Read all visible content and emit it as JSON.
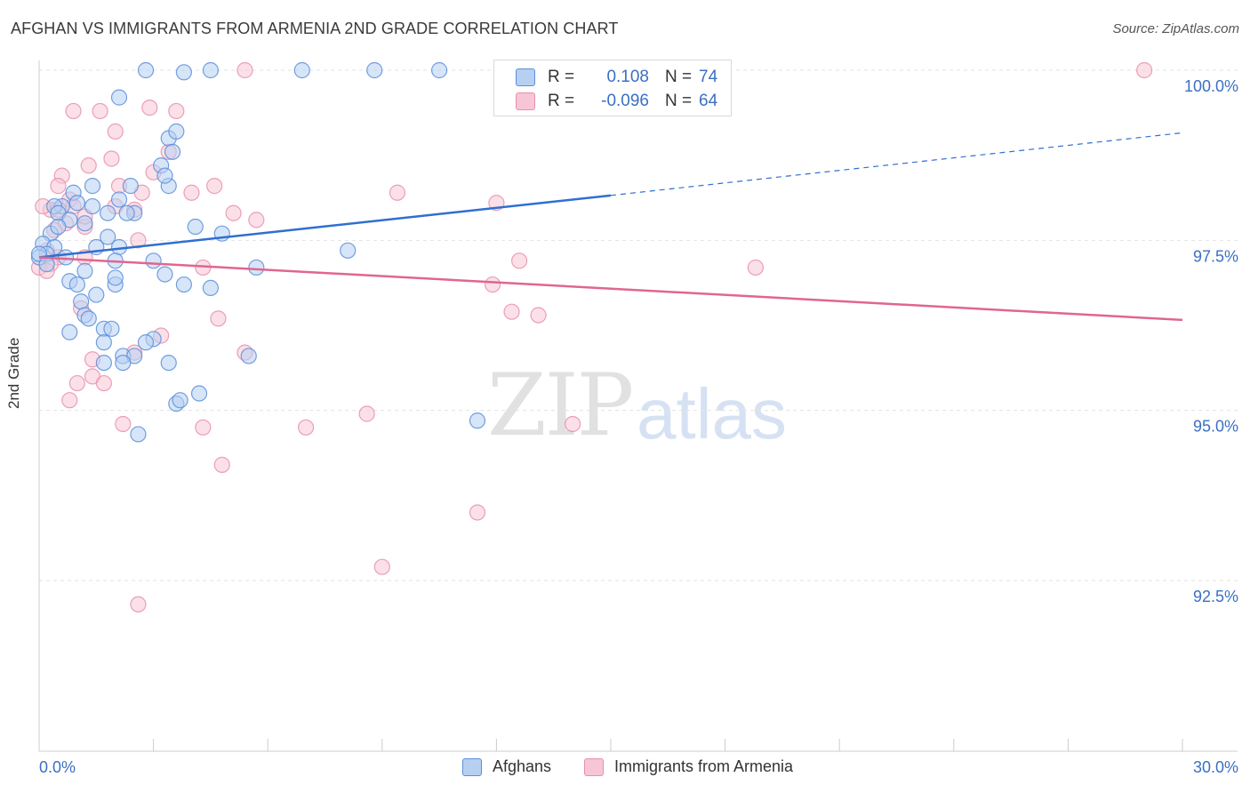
{
  "title": "AFGHAN VS IMMIGRANTS FROM ARMENIA 2ND GRADE CORRELATION CHART",
  "source": "Source: ZipAtlas.com",
  "watermark": {
    "zip": "ZIP",
    "atlas": "atlas"
  },
  "colors": {
    "blue": "#5b8fd9",
    "blue_fill": "#b7d0f2",
    "blue_line": "#2f6fd1",
    "pink": "#e78fae",
    "pink_fill": "#f7c6d6",
    "pink_line": "#e0668f",
    "axis_label": "#3a6fc4"
  },
  "legend": {
    "rows": [
      {
        "r_label": "R =",
        "r_value": "0.108",
        "n_label": "N =",
        "n_value": "74"
      },
      {
        "r_label": "R =",
        "r_value": "-0.096",
        "n_label": "N =",
        "n_value": "64"
      }
    ]
  },
  "bottom_legend": {
    "afghans": "Afghans",
    "armenia": "Immigrants from Armenia"
  },
  "chart_data": {
    "type": "scatter",
    "title": "AFGHAN VS IMMIGRANTS FROM ARMENIA 2ND GRADE CORRELATION CHART",
    "xlabel": "",
    "ylabel": "2nd Grade",
    "xlim": [
      0.0,
      30.0
    ],
    "ylim": [
      90.0,
      100.2
    ],
    "x_tick_labels": [
      "0.0%",
      "30.0%"
    ],
    "y_ticks": [
      92.5,
      95.0,
      97.5,
      100.0
    ],
    "y_tick_labels": [
      "92.5%",
      "95.0%",
      "97.5%",
      "100.0%"
    ],
    "grid": true,
    "series": [
      {
        "name": "Afghans",
        "r": 0.108,
        "n": 74,
        "trend": {
          "x": [
            0.0,
            15.0
          ],
          "y": [
            97.25,
            98.16
          ],
          "dashed_extension": {
            "x": [
              15.0,
              30.0
            ],
            "y": [
              98.16,
              99.08
            ]
          }
        },
        "points": [
          [
            2.8,
            100.0
          ],
          [
            3.8,
            99.97
          ],
          [
            4.5,
            100.0
          ],
          [
            6.9,
            100.0
          ],
          [
            8.8,
            100.0
          ],
          [
            10.5,
            100.0
          ],
          [
            2.1,
            99.6
          ],
          [
            3.4,
            99.0
          ],
          [
            3.5,
            98.8
          ],
          [
            3.6,
            99.1
          ],
          [
            3.2,
            98.6
          ],
          [
            3.4,
            98.3
          ],
          [
            2.4,
            98.3
          ],
          [
            0.9,
            98.2
          ],
          [
            1.4,
            98.3
          ],
          [
            1.4,
            98.0
          ],
          [
            0.6,
            98.0
          ],
          [
            0.4,
            98.0
          ],
          [
            0.5,
            97.9
          ],
          [
            0.8,
            97.8
          ],
          [
            1.8,
            97.9
          ],
          [
            2.5,
            97.9
          ],
          [
            2.3,
            97.9
          ],
          [
            4.1,
            97.7
          ],
          [
            4.8,
            97.6
          ],
          [
            1.2,
            97.75
          ],
          [
            0.3,
            97.6
          ],
          [
            1.8,
            97.55
          ],
          [
            0.1,
            97.45
          ],
          [
            0.4,
            97.4
          ],
          [
            0.2,
            97.3
          ],
          [
            0.0,
            97.25
          ],
          [
            0.7,
            97.25
          ],
          [
            1.5,
            97.4
          ],
          [
            2.1,
            97.4
          ],
          [
            2.0,
            97.2
          ],
          [
            3.0,
            97.2
          ],
          [
            3.3,
            97.0
          ],
          [
            5.7,
            97.1
          ],
          [
            8.1,
            97.35
          ],
          [
            1.2,
            97.05
          ],
          [
            0.8,
            96.9
          ],
          [
            1.0,
            96.85
          ],
          [
            1.5,
            96.7
          ],
          [
            2.0,
            96.85
          ],
          [
            2.0,
            96.95
          ],
          [
            3.8,
            96.85
          ],
          [
            4.5,
            96.8
          ],
          [
            1.1,
            96.6
          ],
          [
            1.2,
            96.4
          ],
          [
            1.3,
            96.35
          ],
          [
            0.8,
            96.15
          ],
          [
            1.7,
            96.2
          ],
          [
            1.9,
            96.2
          ],
          [
            1.7,
            96.0
          ],
          [
            3.0,
            96.05
          ],
          [
            2.8,
            96.0
          ],
          [
            2.2,
            95.8
          ],
          [
            2.5,
            95.8
          ],
          [
            1.7,
            95.7
          ],
          [
            2.2,
            95.7
          ],
          [
            3.4,
            95.7
          ],
          [
            5.5,
            95.8
          ],
          [
            3.6,
            95.1
          ],
          [
            3.7,
            95.15
          ],
          [
            4.2,
            95.25
          ],
          [
            2.6,
            94.65
          ],
          [
            11.5,
            94.85
          ],
          [
            0.0,
            97.3
          ],
          [
            0.2,
            97.15
          ],
          [
            1.0,
            98.05
          ],
          [
            0.5,
            97.7
          ],
          [
            2.1,
            98.1
          ],
          [
            3.3,
            98.45
          ]
        ]
      },
      {
        "name": "Immigrants from Armenia",
        "r": -0.096,
        "n": 64,
        "trend": {
          "x": [
            0.0,
            30.0
          ],
          "y": [
            97.25,
            96.33
          ]
        },
        "points": [
          [
            5.4,
            100.0
          ],
          [
            29.0,
            100.0
          ],
          [
            0.9,
            99.4
          ],
          [
            1.6,
            99.4
          ],
          [
            2.9,
            99.45
          ],
          [
            3.6,
            99.4
          ],
          [
            2.0,
            99.1
          ],
          [
            1.9,
            98.7
          ],
          [
            3.4,
            98.8
          ],
          [
            1.3,
            98.6
          ],
          [
            3.0,
            98.5
          ],
          [
            0.6,
            98.45
          ],
          [
            0.5,
            98.3
          ],
          [
            2.1,
            98.3
          ],
          [
            4.0,
            98.2
          ],
          [
            4.6,
            98.3
          ],
          [
            2.7,
            98.2
          ],
          [
            9.4,
            98.2
          ],
          [
            0.8,
            98.1
          ],
          [
            2.0,
            98.0
          ],
          [
            0.3,
            97.95
          ],
          [
            0.1,
            98.0
          ],
          [
            2.5,
            97.95
          ],
          [
            5.1,
            97.9
          ],
          [
            5.7,
            97.8
          ],
          [
            0.7,
            97.75
          ],
          [
            1.2,
            97.7
          ],
          [
            0.4,
            97.65
          ],
          [
            12.0,
            98.05
          ],
          [
            2.6,
            97.5
          ],
          [
            0.2,
            97.35
          ],
          [
            0.5,
            97.25
          ],
          [
            1.2,
            97.25
          ],
          [
            0.3,
            97.15
          ],
          [
            0.0,
            97.1
          ],
          [
            0.2,
            97.05
          ],
          [
            4.3,
            97.1
          ],
          [
            12.6,
            97.2
          ],
          [
            11.9,
            96.85
          ],
          [
            18.8,
            97.1
          ],
          [
            12.4,
            96.45
          ],
          [
            13.1,
            96.4
          ],
          [
            1.1,
            96.5
          ],
          [
            4.7,
            96.35
          ],
          [
            3.2,
            96.1
          ],
          [
            5.4,
            95.85
          ],
          [
            1.4,
            95.75
          ],
          [
            2.5,
            95.85
          ],
          [
            1.4,
            95.5
          ],
          [
            1.0,
            95.4
          ],
          [
            1.7,
            95.4
          ],
          [
            0.8,
            95.15
          ],
          [
            2.2,
            94.8
          ],
          [
            4.3,
            94.75
          ],
          [
            7.0,
            94.75
          ],
          [
            8.6,
            94.95
          ],
          [
            14.0,
            94.8
          ],
          [
            4.8,
            94.2
          ],
          [
            11.5,
            93.5
          ],
          [
            9.0,
            92.7
          ],
          [
            2.6,
            92.15
          ],
          [
            0.5,
            97.95
          ],
          [
            1.2,
            97.85
          ],
          [
            0.9,
            98.0
          ]
        ]
      }
    ]
  }
}
